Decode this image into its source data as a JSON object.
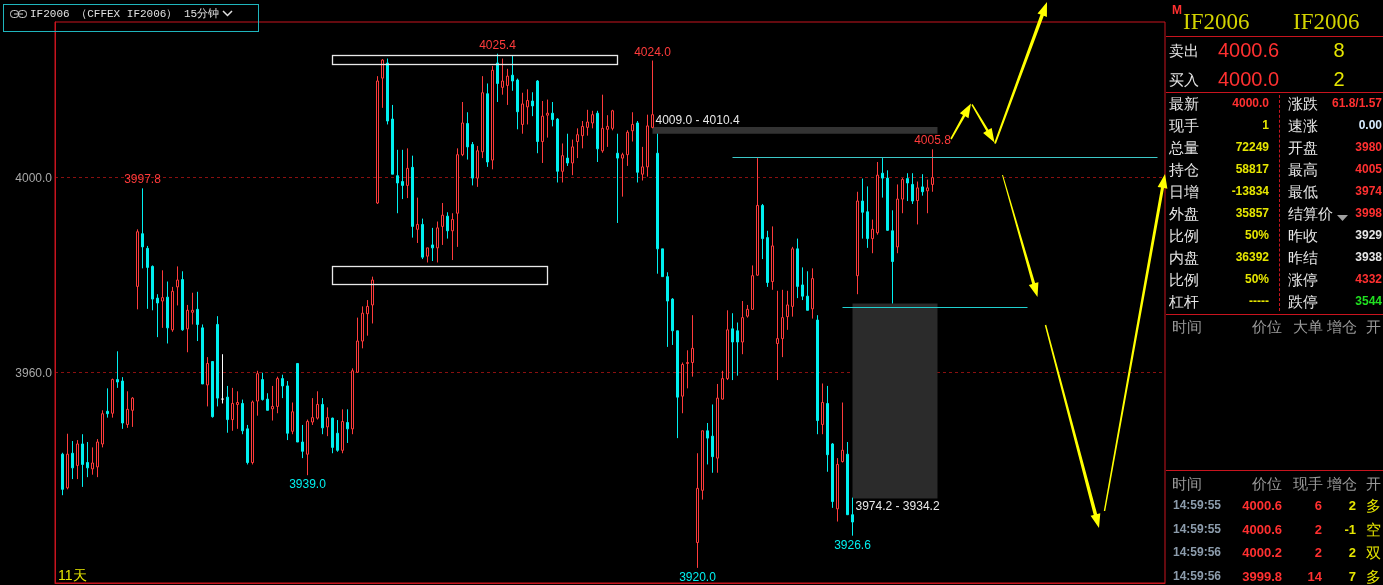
{
  "chart_data": [
    {
      "type": "candlestick",
      "title": "IF2006 （CFFEX IF2006） 15分钟",
      "annotations": [
        "11天",
        {
          "text": "4025.4",
          "y": 4025.4
        },
        {
          "text": "4024.0",
          "y": 4024.0
        },
        {
          "text": "3997.8",
          "y": 3997.8
        },
        {
          "text": "3939.0",
          "y": 3939.0
        },
        {
          "text": "3920.0",
          "y": 3920.0
        },
        {
          "text": "3926.6",
          "y": 3926.6
        },
        {
          "text": "4005.8",
          "y": 4005.8
        }
      ],
      "categories": [
        null,
        null,
        null,
        null,
        null,
        null,
        null,
        null,
        null,
        null,
        null,
        null,
        null,
        null,
        null,
        null,
        null,
        null,
        null,
        null,
        null,
        null,
        null,
        null,
        null,
        null,
        null,
        null,
        null,
        null,
        null,
        null,
        null,
        null,
        null,
        null,
        null,
        null,
        null,
        null,
        null,
        null,
        null,
        null,
        null,
        null,
        null,
        null,
        null,
        null,
        null,
        null,
        null,
        null,
        null,
        null,
        null,
        null,
        null,
        null,
        null,
        null,
        null,
        null,
        null,
        null,
        null,
        null,
        null,
        null,
        null,
        null,
        null,
        null,
        null,
        null,
        null,
        null,
        null,
        null,
        null,
        null,
        null,
        null,
        null,
        null,
        null,
        null,
        null,
        null,
        null,
        null,
        null,
        null,
        null,
        null,
        null,
        null,
        null,
        null,
        null,
        null,
        null,
        null,
        null,
        null,
        null,
        null,
        null,
        null,
        null,
        null,
        null,
        null,
        null,
        null,
        null,
        null,
        null,
        null,
        null,
        null,
        null,
        null,
        null,
        null,
        null,
        null,
        null,
        null,
        null,
        null,
        null,
        null,
        null,
        null,
        null,
        null,
        null,
        null,
        null,
        null,
        null,
        null,
        null,
        null,
        null,
        null,
        null,
        null,
        null,
        null,
        null,
        null,
        null,
        null,
        null,
        null,
        null,
        null,
        null,
        null,
        null,
        null,
        null,
        null,
        null,
        null,
        null,
        null,
        null,
        null,
        null,
        null,
        null
      ],
      "ohlc": [
        [
          3943.3,
          3943.6,
          3934.9,
          3936.1
        ],
        [
          3936.4,
          3947.5,
          3936.1,
          3943.3
        ],
        [
          3943.5,
          3946.0,
          3938.2,
          3940.5
        ],
        [
          3941.0,
          3946.2,
          3938.2,
          3945.4
        ],
        [
          3945.4,
          3947.4,
          3936.6,
          3941.2
        ],
        [
          3941.6,
          3945.8,
          3938.6,
          3940.5
        ],
        [
          3940.3,
          3944.7,
          3939.1,
          3941.5
        ],
        [
          3940.7,
          3946.4,
          3938.6,
          3945.8
        ],
        [
          3945.4,
          3952.3,
          3944.7,
          3951.6
        ],
        [
          3952.1,
          3956.8,
          3950.8,
          3951.6
        ],
        [
          3951.7,
          3958.8,
          3950.8,
          3958.6
        ],
        [
          3958.6,
          3964.4,
          3956.9,
          3958.1
        ],
        [
          3958.3,
          3959.1,
          3948.5,
          3949.7
        ],
        [
          3949.4,
          3956.2,
          3948.7,
          3952.5
        ],
        [
          3952.3,
          3955.0,
          3948.9,
          3954.8
        ],
        [
          3977.7,
          3989.4,
          3973.0,
          3988.9
        ],
        [
          3988.5,
          3997.8,
          3981.4,
          3985.8
        ],
        [
          3985.5,
          3986.0,
          3973.1,
          3981.6
        ],
        [
          3981.8,
          3982.0,
          3972.8,
          3975.1
        ],
        [
          3975.3,
          3976.1,
          3967.3,
          3974.3
        ],
        [
          3974.7,
          3981.0,
          3969.2,
          3975.4
        ],
        [
          3975.5,
          3978.7,
          3966.0,
          3969.2
        ],
        [
          3968.8,
          3977.6,
          3968.4,
          3976.7
        ],
        [
          3977.6,
          3981.8,
          3973.8,
          3979.0
        ],
        [
          3979.1,
          3980.8,
          3968.6,
          3968.8
        ],
        [
          3969.0,
          3973.9,
          3964.2,
          3972.8
        ],
        [
          3972.4,
          3976.4,
          3969.9,
          3972.8
        ],
        [
          3973.0,
          3976.6,
          3966.5,
          3969.9
        ],
        [
          3969.2,
          3969.9,
          3957.7,
          3957.7
        ],
        [
          3957.5,
          3963.2,
          3953.1,
          3961.9
        ],
        [
          3962.3,
          3962.4,
          3950.8,
          3951.0
        ],
        [
          3969.9,
          3971.6,
          3953.1,
          3954.8
        ],
        [
          3954.6,
          3963.8,
          3953.7,
          3954.6
        ],
        [
          3955.0,
          3957.3,
          3947.7,
          3950.4
        ],
        [
          3950.4,
          3956.9,
          3948.1,
          3953.7
        ],
        [
          3953.5,
          3956.2,
          3948.5,
          3953.9
        ],
        [
          3953.7,
          3954.5,
          3947.4,
          3948.1
        ],
        [
          3948.5,
          3949.3,
          3941.2,
          3941.6
        ],
        [
          3941.6,
          3954.3,
          3941.2,
          3954.0
        ],
        [
          3954.2,
          3960.4,
          3951.2,
          3959.8
        ],
        [
          3958.6,
          3960.0,
          3954.3,
          3954.5
        ],
        [
          3954.6,
          3955.8,
          3952.3,
          3952.3
        ],
        [
          3952.6,
          3957.3,
          3950.2,
          3953.1
        ],
        [
          3953.1,
          3959.2,
          3951.7,
          3958.8
        ],
        [
          3958.8,
          3959.6,
          3954.8,
          3957.3
        ],
        [
          3957.3,
          3958.3,
          3946.2,
          3947.6
        ],
        [
          3948.0,
          3953.9,
          3947.4,
          3952.0
        ],
        [
          3961.9,
          3961.9,
          3945.8,
          3945.8
        ],
        [
          3945.8,
          3949.3,
          3942.5,
          3943.9
        ],
        [
          3943.3,
          3950.4,
          3939.0,
          3950.0
        ],
        [
          3949.9,
          3954.8,
          3949.3,
          3950.8
        ],
        [
          3950.7,
          3956.2,
          3950.4,
          3953.5
        ],
        [
          3953.5,
          3954.8,
          3947.4,
          3948.7
        ],
        [
          3948.9,
          3952.9,
          3947.0,
          3950.8
        ],
        [
          3950.7,
          3950.8,
          3943.5,
          3944.7
        ],
        [
          3947.6,
          3950.3,
          3943.8,
          3944.1
        ],
        [
          3944.1,
          3952.5,
          3943.5,
          3950.0
        ],
        [
          3949.8,
          3952.5,
          3945.6,
          3948.5
        ],
        [
          3948.5,
          3960.9,
          3947.4,
          3960.4
        ],
        [
          3960.1,
          3971.3,
          3960.0,
          3966.5
        ],
        [
          3966.5,
          3973.6,
          3965.0,
          3972.2
        ],
        [
          3972.1,
          3974.9,
          3967.6,
          3973.6
        ],
        [
          3973.9,
          3979.7,
          3970.1,
          3979.0
        ],
        [
          3994.8,
          4020.8,
          3994.6,
          4019.8
        ],
        [
          4020.4,
          4024.3,
          4014.3,
          4024.1
        ],
        [
          4023.5,
          4024.4,
          4010.9,
          4011.6
        ],
        [
          4012.0,
          4014.9,
          4000.7,
          4000.7
        ],
        [
          4000.4,
          4005.7,
          3992.7,
          3998.9
        ],
        [
          3999.2,
          4005.7,
          3995.6,
          3998.4
        ],
        [
          3998.4,
          4006.0,
          3995.8,
          4001.9
        ],
        [
          4002.1,
          4004.5,
          3987.7,
          3990.0
        ],
        [
          3989.4,
          3995.9,
          3986.6,
          3990.4
        ],
        [
          3990.4,
          3991.6,
          3983.3,
          3983.7
        ],
        [
          3983.9,
          3985.6,
          3982.6,
          3985.6
        ],
        [
          3986.2,
          3989.7,
          3982.9,
          3985.6
        ],
        [
          3985.6,
          3991.0,
          3982.6,
          3989.7
        ],
        [
          3990.0,
          3994.8,
          3986.2,
          3992.3
        ],
        [
          3992.1,
          3992.9,
          3987.5,
          3989.1
        ],
        [
          3989.1,
          3992.7,
          3983.1,
          3991.4
        ],
        [
          3992.7,
          4006.0,
          3985.8,
          4004.7
        ],
        [
          4004.7,
          4015.5,
          4004.4,
          4011.2
        ],
        [
          4011.1,
          4013.4,
          4003.7,
          4006.3
        ],
        [
          4006.8,
          4007.3,
          3998.4,
          3999.9
        ],
        [
          3999.9,
          4006.5,
          3998.1,
          4005.5
        ],
        [
          4005.3,
          4020.8,
          4004.0,
          4017.4
        ],
        [
          4017.2,
          4019.3,
          4002.2,
          4003.2
        ],
        [
          4003.6,
          4022.9,
          4001.7,
          4022.0
        ],
        [
          4023.5,
          4025.4,
          4015.5,
          4019.3
        ],
        [
          4018.5,
          4024.4,
          4017.0,
          4019.8
        ],
        [
          4018.9,
          4022.3,
          4014.9,
          4020.8
        ],
        [
          4021.0,
          4025.0,
          4017.8,
          4019.8
        ],
        [
          4020.0,
          4020.3,
          4009.9,
          4013.5
        ],
        [
          4010.9,
          4017.4,
          4009.0,
          4015.1
        ],
        [
          4014.5,
          4018.1,
          4010.9,
          4015.8
        ],
        [
          4015.7,
          4017.5,
          4012.6,
          4014.7
        ],
        [
          4019.8,
          4020.0,
          4005.0,
          4007.4
        ],
        [
          4007.4,
          4015.7,
          4003.0,
          4012.6
        ],
        [
          4012.8,
          4016.0,
          4008.2,
          4013.2
        ],
        [
          4013.2,
          4015.5,
          4010.5,
          4011.9
        ],
        [
          4012.0,
          4012.2,
          3999.0,
          4001.3
        ],
        [
          4001.3,
          4007.0,
          3999.0,
          4004.5
        ],
        [
          4004.0,
          4009.0,
          4002.4,
          4003.0
        ],
        [
          4003.0,
          4007.8,
          4000.5,
          4006.3
        ],
        [
          4007.4,
          4010.1,
          4004.0,
          4008.8
        ],
        [
          4008.6,
          4011.6,
          4006.0,
          4010.5
        ],
        [
          4010.3,
          4013.9,
          4008.6,
          4011.4
        ],
        [
          4011.2,
          4013.7,
          4010.1,
          4012.9
        ],
        [
          4013.2,
          4013.7,
          4003.2,
          4005.9
        ],
        [
          4005.5,
          4017.0,
          4005.1,
          4010.1
        ],
        [
          4009.9,
          4012.8,
          4006.3,
          4010.5
        ],
        [
          4010.1,
          4013.9,
          4009.7,
          4013.7
        ],
        [
          4005.0,
          4009.0,
          3990.7,
          4004.0
        ],
        [
          4004.0,
          4005.1,
          3996.1,
          4004.7
        ],
        [
          4004.7,
          4009.7,
          4002.4,
          4009.3
        ],
        [
          4009.6,
          4013.4,
          4007.4,
          4010.9
        ],
        [
          4011.2,
          4011.6,
          3999.0,
          4001.1
        ],
        [
          4000.7,
          4006.3,
          3999.4,
          4002.2
        ],
        [
          4002.2,
          4012.9,
          4000.2,
          4010.6
        ],
        [
          4010.3,
          4024.0,
          4010.1,
          4012.9
        ],
        [
          4005.0,
          4009.0,
          3980.3,
          3985.4
        ],
        [
          3985.4,
          3985.4,
          3979.7,
          3979.7
        ],
        [
          3979.7,
          3980.6,
          3965.3,
          3974.7
        ],
        [
          3975.1,
          3975.3,
          3965.7,
          3968.6
        ],
        [
          3968.6,
          3968.6,
          3946.6,
          3955.0
        ],
        [
          3955.2,
          3962.1,
          3951.7,
          3961.7
        ],
        [
          3961.9,
          3964.6,
          3956.8,
          3962.1
        ],
        [
          3962.1,
          3971.8,
          3959.2,
          3965.0
        ],
        [
          3925.2,
          3943.5,
          3920.0,
          3936.3
        ],
        [
          3935.9,
          3948.1,
          3934.0,
          3948.1
        ],
        [
          3948.1,
          3949.7,
          3941.2,
          3946.6
        ],
        [
          3947.0,
          3953.5,
          3939.5,
          3942.8
        ],
        [
          3942.5,
          3957.7,
          3939.5,
          3954.8
        ],
        [
          3954.6,
          3960.4,
          3954.5,
          3958.8
        ],
        [
          3958.8,
          3972.8,
          3958.5,
          3968.8
        ],
        [
          3969.0,
          3972.2,
          3958.5,
          3966.3
        ],
        [
          3968.6,
          3970.3,
          3959.4,
          3966.3
        ],
        [
          3966.3,
          3974.7,
          3963.8,
          3971.3
        ],
        [
          3971.6,
          3973.9,
          3971.3,
          3973.0
        ],
        [
          3973.0,
          3982.0,
          3973.0,
          3979.9
        ],
        [
          3980.0,
          4004.0,
          3979.9,
          3994.3
        ],
        [
          3994.3,
          3994.6,
          3983.3,
          3987.5
        ],
        [
          3987.7,
          3989.1,
          3977.6,
          3978.5
        ],
        [
          3978.7,
          3990.0,
          3977.0,
          3986.0
        ],
        [
          3966.0,
          3976.8,
          3958.5,
          3967.0
        ],
        [
          3967.0,
          3977.0,
          3963.2,
          3971.3
        ],
        [
          3971.5,
          3976.8,
          3968.8,
          3973.9
        ],
        [
          3973.6,
          3985.8,
          3971.5,
          3985.4
        ],
        [
          3985.4,
          3987.5,
          3975.3,
          3977.7
        ],
        [
          3978.0,
          3981.6,
          3974.9,
          3975.7
        ],
        [
          3975.7,
          3980.8,
          3972.8,
          3972.8
        ],
        [
          3973.1,
          3981.4,
          3971.1,
          3979.3
        ],
        [
          3970.8,
          3971.8,
          3947.4,
          3950.2
        ],
        [
          3949.4,
          3957.8,
          3947.4,
          3953.9
        ],
        [
          3953.7,
          3957.3,
          3939.7,
          3943.2
        ],
        [
          3945.4,
          3945.6,
          3932.3,
          3933.6
        ],
        [
          3932.1,
          3942.5,
          3929.5,
          3941.2
        ],
        [
          3941.8,
          3953.9,
          3941.6,
          3944.1
        ],
        [
          3943.3,
          3945.8,
          3930.9,
          3930.9
        ],
        [
          3930.9,
          3934.4,
          3926.6,
          3929.4
        ],
        [
          3979.9,
          3997.1,
          3976.1,
          3995.2
        ],
        [
          3995.2,
          3999.8,
          3987.5,
          3992.9
        ],
        [
          3993.0,
          3998.2,
          3985.6,
          3987.5
        ],
        [
          3987.5,
          3991.4,
          3984.5,
          3989.4
        ],
        [
          3988.7,
          4003.2,
          3988.3,
          4000.5
        ],
        [
          4000.9,
          4004.0,
          3995.9,
          3999.9
        ],
        [
          3999.9,
          4001.5,
          3989.1,
          3989.2
        ],
        [
          3989.1,
          3993.3,
          3974.2,
          3982.8
        ],
        [
          3985.8,
          3998.6,
          3984.5,
          3995.6
        ],
        [
          3995.6,
          3999.9,
          3992.7,
          3999.6
        ],
        [
          3999.8,
          4000.9,
          3995.2,
          3998.9
        ],
        [
          3998.6,
          4000.9,
          3994.6,
          3995.2
        ],
        [
          3995.3,
          3999.2,
          3990.4,
          3997.9
        ],
        [
          3998.1,
          4000.7,
          3996.3,
          3997.1
        ],
        [
          3997.3,
          3999.6,
          3992.7,
          3997.9
        ],
        [
          3998.6,
          4005.8,
          3997.1,
          4000.0
        ]
      ],
      "ylim": [
        3916.9,
        4031.9
      ],
      "yticks": [
        {
          "value": 4000,
          "label": "4000.0"
        },
        {
          "value": 3960,
          "label": "3960.0"
        }
      ],
      "grid": "y",
      "tick_labels": "y",
      "bands": [
        {
          "axis": "y",
          "from": 4009.0,
          "to": 4010.4,
          "label": "4009.0 - 4010.4",
          "color": "#333333"
        },
        {
          "axis": "y",
          "from": 3974.2,
          "to": 3934.2,
          "label": "3974.2 - 3934.2",
          "color": "#2b2b2b"
        }
      ],
      "ref_lines": [
        {
          "axis": "y",
          "value": 4004.2,
          "color": "#3cc8c8"
        },
        {
          "axis": "y",
          "value": 3973.4,
          "color": "#20d0d0"
        }
      ]
    },
    {
      "type": "other",
      "annotations": [
        "M",
        "IF2006",
        "IF2006",
        "卖出",
        "4000.6",
        "8",
        "买入",
        "4000.0",
        "2",
        "最新",
        "4000.0",
        "涨跌",
        "61.8/1.57",
        "现手",
        "1",
        "速涨",
        "0.00",
        "总量",
        "72249",
        "开盘",
        "3980",
        "持仓",
        "58817",
        "最高",
        "4005",
        "日增",
        "-13834",
        "最低",
        "3974",
        "外盘",
        "35857",
        "结算价",
        "3998",
        "比例",
        "50%",
        "昨收",
        "3929",
        "内盘",
        "36392",
        "昨结",
        "3938",
        "比例",
        "50%",
        "涨停",
        "4332",
        "杠杆",
        "-----",
        "跌停",
        "3544",
        "时间",
        "价位",
        "大单",
        "增仓",
        "开",
        "时间",
        "价位",
        "现手",
        "增仓",
        "开",
        "14:59:55",
        "4000.6",
        "6",
        "2",
        "多",
        "14:59:55",
        "4000.6",
        "2",
        "-1",
        "空",
        "14:59:56",
        "4000.2",
        "2",
        "2",
        "双",
        "14:59:56",
        "3999.8",
        "14",
        "7",
        "多"
      ]
    }
  ]
}
